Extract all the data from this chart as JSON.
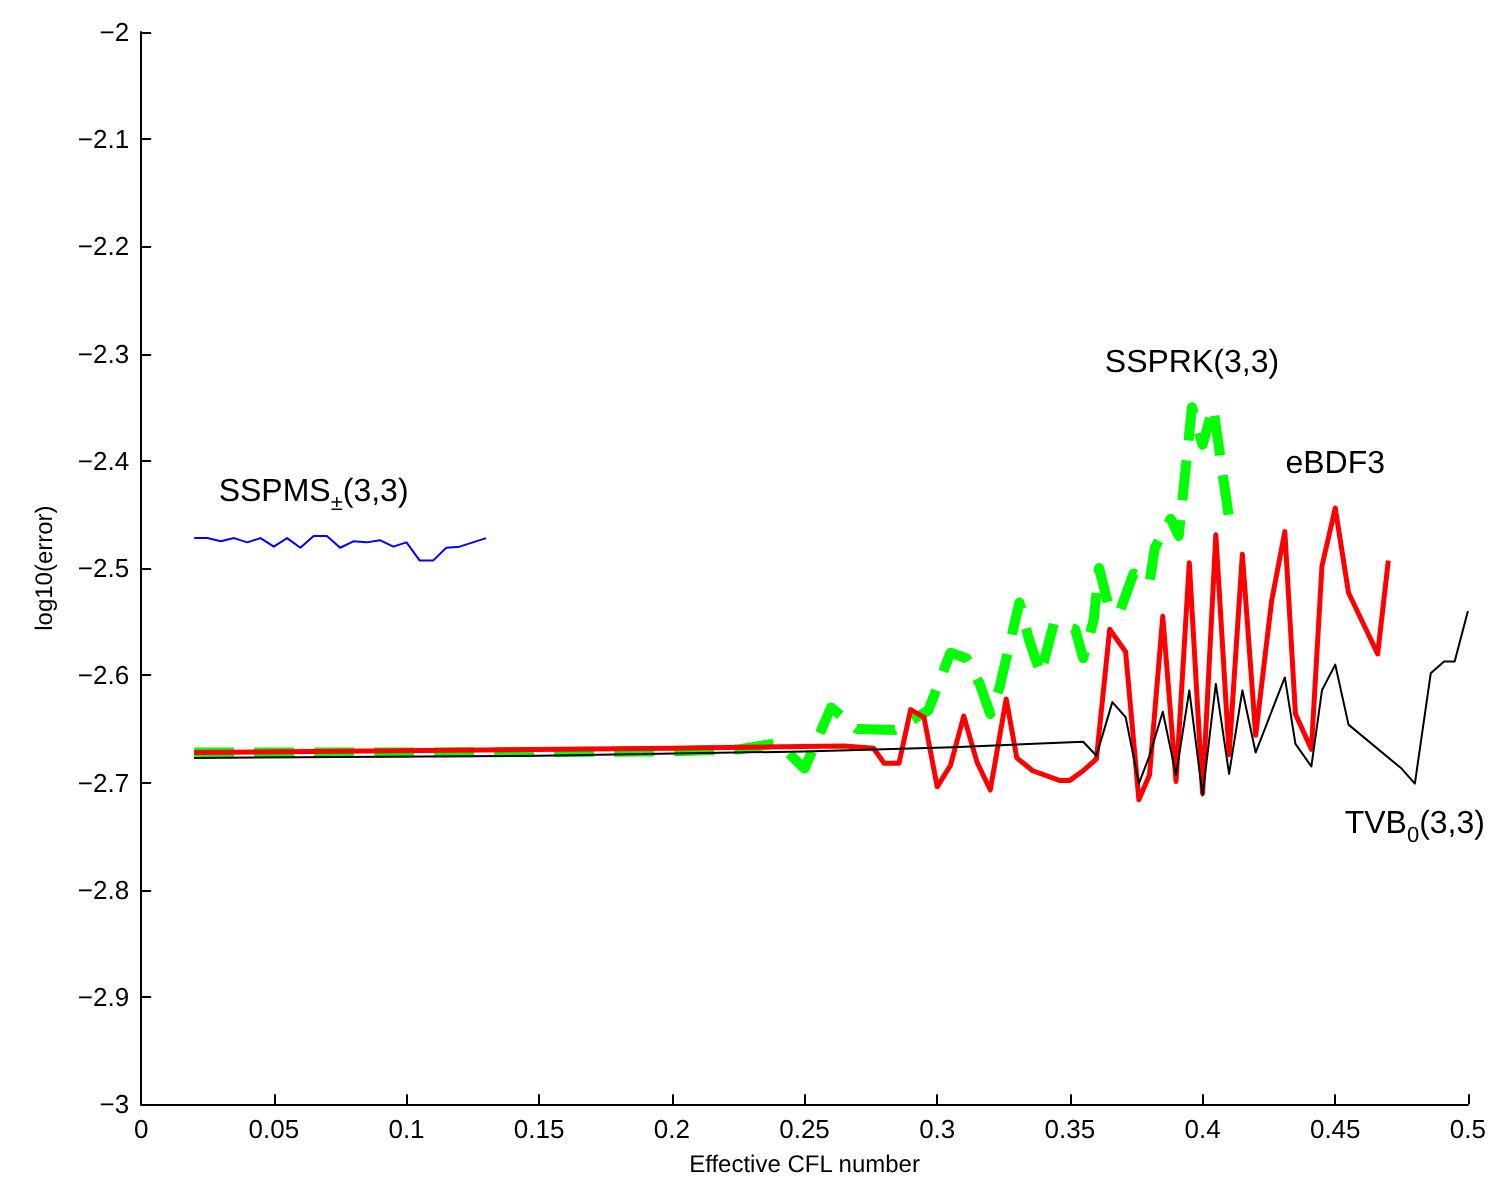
{
  "chart_data": {
    "type": "line",
    "xlabel": "Effective CFL number",
    "ylabel": "log10(error)",
    "xlim": [
      0,
      0.5
    ],
    "xticks": [
      0,
      0.05,
      0.1,
      0.15,
      0.2,
      0.25,
      0.3,
      0.35,
      0.4,
      0.45,
      0.5
    ],
    "ylim": [
      -3,
      -2
    ],
    "yticks": [
      -3,
      -2.9,
      -2.8,
      -2.7,
      -2.6,
      -2.5,
      -2.4,
      -2.3,
      -2.2,
      -2.1,
      -2
    ],
    "grid": false,
    "legend": false,
    "marker": "none",
    "series": [
      {
        "name": "SSPMS$_{±}$(3,3)",
        "color": "#0000ff",
        "line_style": "solid",
        "x": [
          0.02,
          0.025,
          0.03,
          0.035,
          0.04,
          0.045,
          0.05,
          0.055,
          0.06,
          0.065,
          0.07,
          0.075,
          0.08,
          0.085,
          0.09,
          0.095,
          0.1,
          0.105,
          0.11,
          0.115,
          0.12,
          0.125,
          0.13
        ],
        "values": [
          -2.472,
          -2.472,
          -2.475,
          -2.472,
          -2.476,
          -2.472,
          -2.48,
          -2.472,
          -2.481,
          -2.47,
          -2.47,
          -2.481,
          -2.475,
          -2.476,
          -2.474,
          -2.48,
          -2.476,
          -2.493,
          -2.493,
          -2.481,
          -2.48,
          -2.476,
          -2.472
        ]
      },
      {
        "name": "SSPRK(3,3)",
        "color": "#00ff00",
        "line_style": "dashed",
        "x": [
          0.02,
          0.1,
          0.2,
          0.2256,
          0.24,
          0.25,
          0.26,
          0.2697,
          0.284,
          0.2966,
          0.305,
          0.311,
          0.316,
          0.32,
          0.3235,
          0.331,
          0.3345,
          0.339,
          0.344,
          0.352,
          0.355,
          0.359,
          0.361,
          0.365,
          0.369,
          0.374,
          0.38,
          0.382,
          0.388,
          0.391,
          0.396,
          0.4,
          0.404,
          0.41
        ],
        "values": [
          -2.672,
          -2.672,
          -2.671,
          -2.669,
          -2.663,
          -2.687,
          -2.63,
          -2.65,
          -2.651,
          -2.633,
          -2.579,
          -2.584,
          -2.608,
          -2.636,
          -2.611,
          -2.532,
          -2.566,
          -2.599,
          -2.551,
          -2.557,
          -2.584,
          -2.548,
          -2.5,
          -2.539,
          -2.539,
          -2.505,
          -2.514,
          -2.481,
          -2.454,
          -2.47,
          -2.35,
          -2.385,
          -2.35,
          -2.454
        ]
      },
      {
        "name": "eBDF3",
        "color": "#ff0000",
        "line_style": "solid",
        "x": [
          0.02,
          0.2,
          0.265,
          0.276,
          0.28,
          0.2856,
          0.29,
          0.295,
          0.3,
          0.305,
          0.31,
          0.315,
          0.32,
          0.326,
          0.33,
          0.336,
          0.346,
          0.35,
          0.355,
          0.36,
          0.365,
          0.371,
          0.376,
          0.38,
          0.385,
          0.39,
          0.395,
          0.4,
          0.405,
          0.41,
          0.415,
          0.42,
          0.426,
          0.431,
          0.435,
          0.441,
          0.445,
          0.45,
          0.455,
          0.466,
          0.47
        ],
        "values": [
          -2.672,
          -2.668,
          -2.666,
          -2.668,
          -2.682,
          -2.682,
          -2.632,
          -2.639,
          -2.704,
          -2.684,
          -2.638,
          -2.681,
          -2.707,
          -2.622,
          -2.677,
          -2.689,
          -2.698,
          -2.698,
          -2.689,
          -2.678,
          -2.557,
          -2.578,
          -2.716,
          -2.693,
          -2.545,
          -2.699,
          -2.495,
          -2.71,
          -2.469,
          -2.674,
          -2.487,
          -2.656,
          -2.531,
          -2.466,
          -2.636,
          -2.669,
          -2.498,
          -2.444,
          -2.523,
          -2.58,
          -2.493
        ]
      },
      {
        "name": "TVB$_{0}$(3,3)",
        "color": "#000000",
        "line_style": "solid",
        "x": [
          0.02,
          0.15,
          0.25,
          0.306,
          0.355,
          0.36,
          0.366,
          0.371,
          0.376,
          0.38,
          0.385,
          0.39,
          0.395,
          0.4,
          0.405,
          0.41,
          0.415,
          0.42,
          0.431,
          0.435,
          0.441,
          0.445,
          0.45,
          0.455,
          0.475,
          0.48,
          0.486,
          0.491,
          0.495,
          0.5
        ],
        "values": [
          -2.677,
          -2.675,
          -2.671,
          -2.667,
          -2.662,
          -2.675,
          -2.625,
          -2.639,
          -2.701,
          -2.675,
          -2.634,
          -2.693,
          -2.614,
          -2.712,
          -2.608,
          -2.692,
          -2.614,
          -2.672,
          -2.602,
          -2.664,
          -2.685,
          -2.614,
          -2.59,
          -2.646,
          -2.687,
          -2.701,
          -2.598,
          -2.587,
          -2.587,
          -2.54
        ]
      }
    ]
  }
}
